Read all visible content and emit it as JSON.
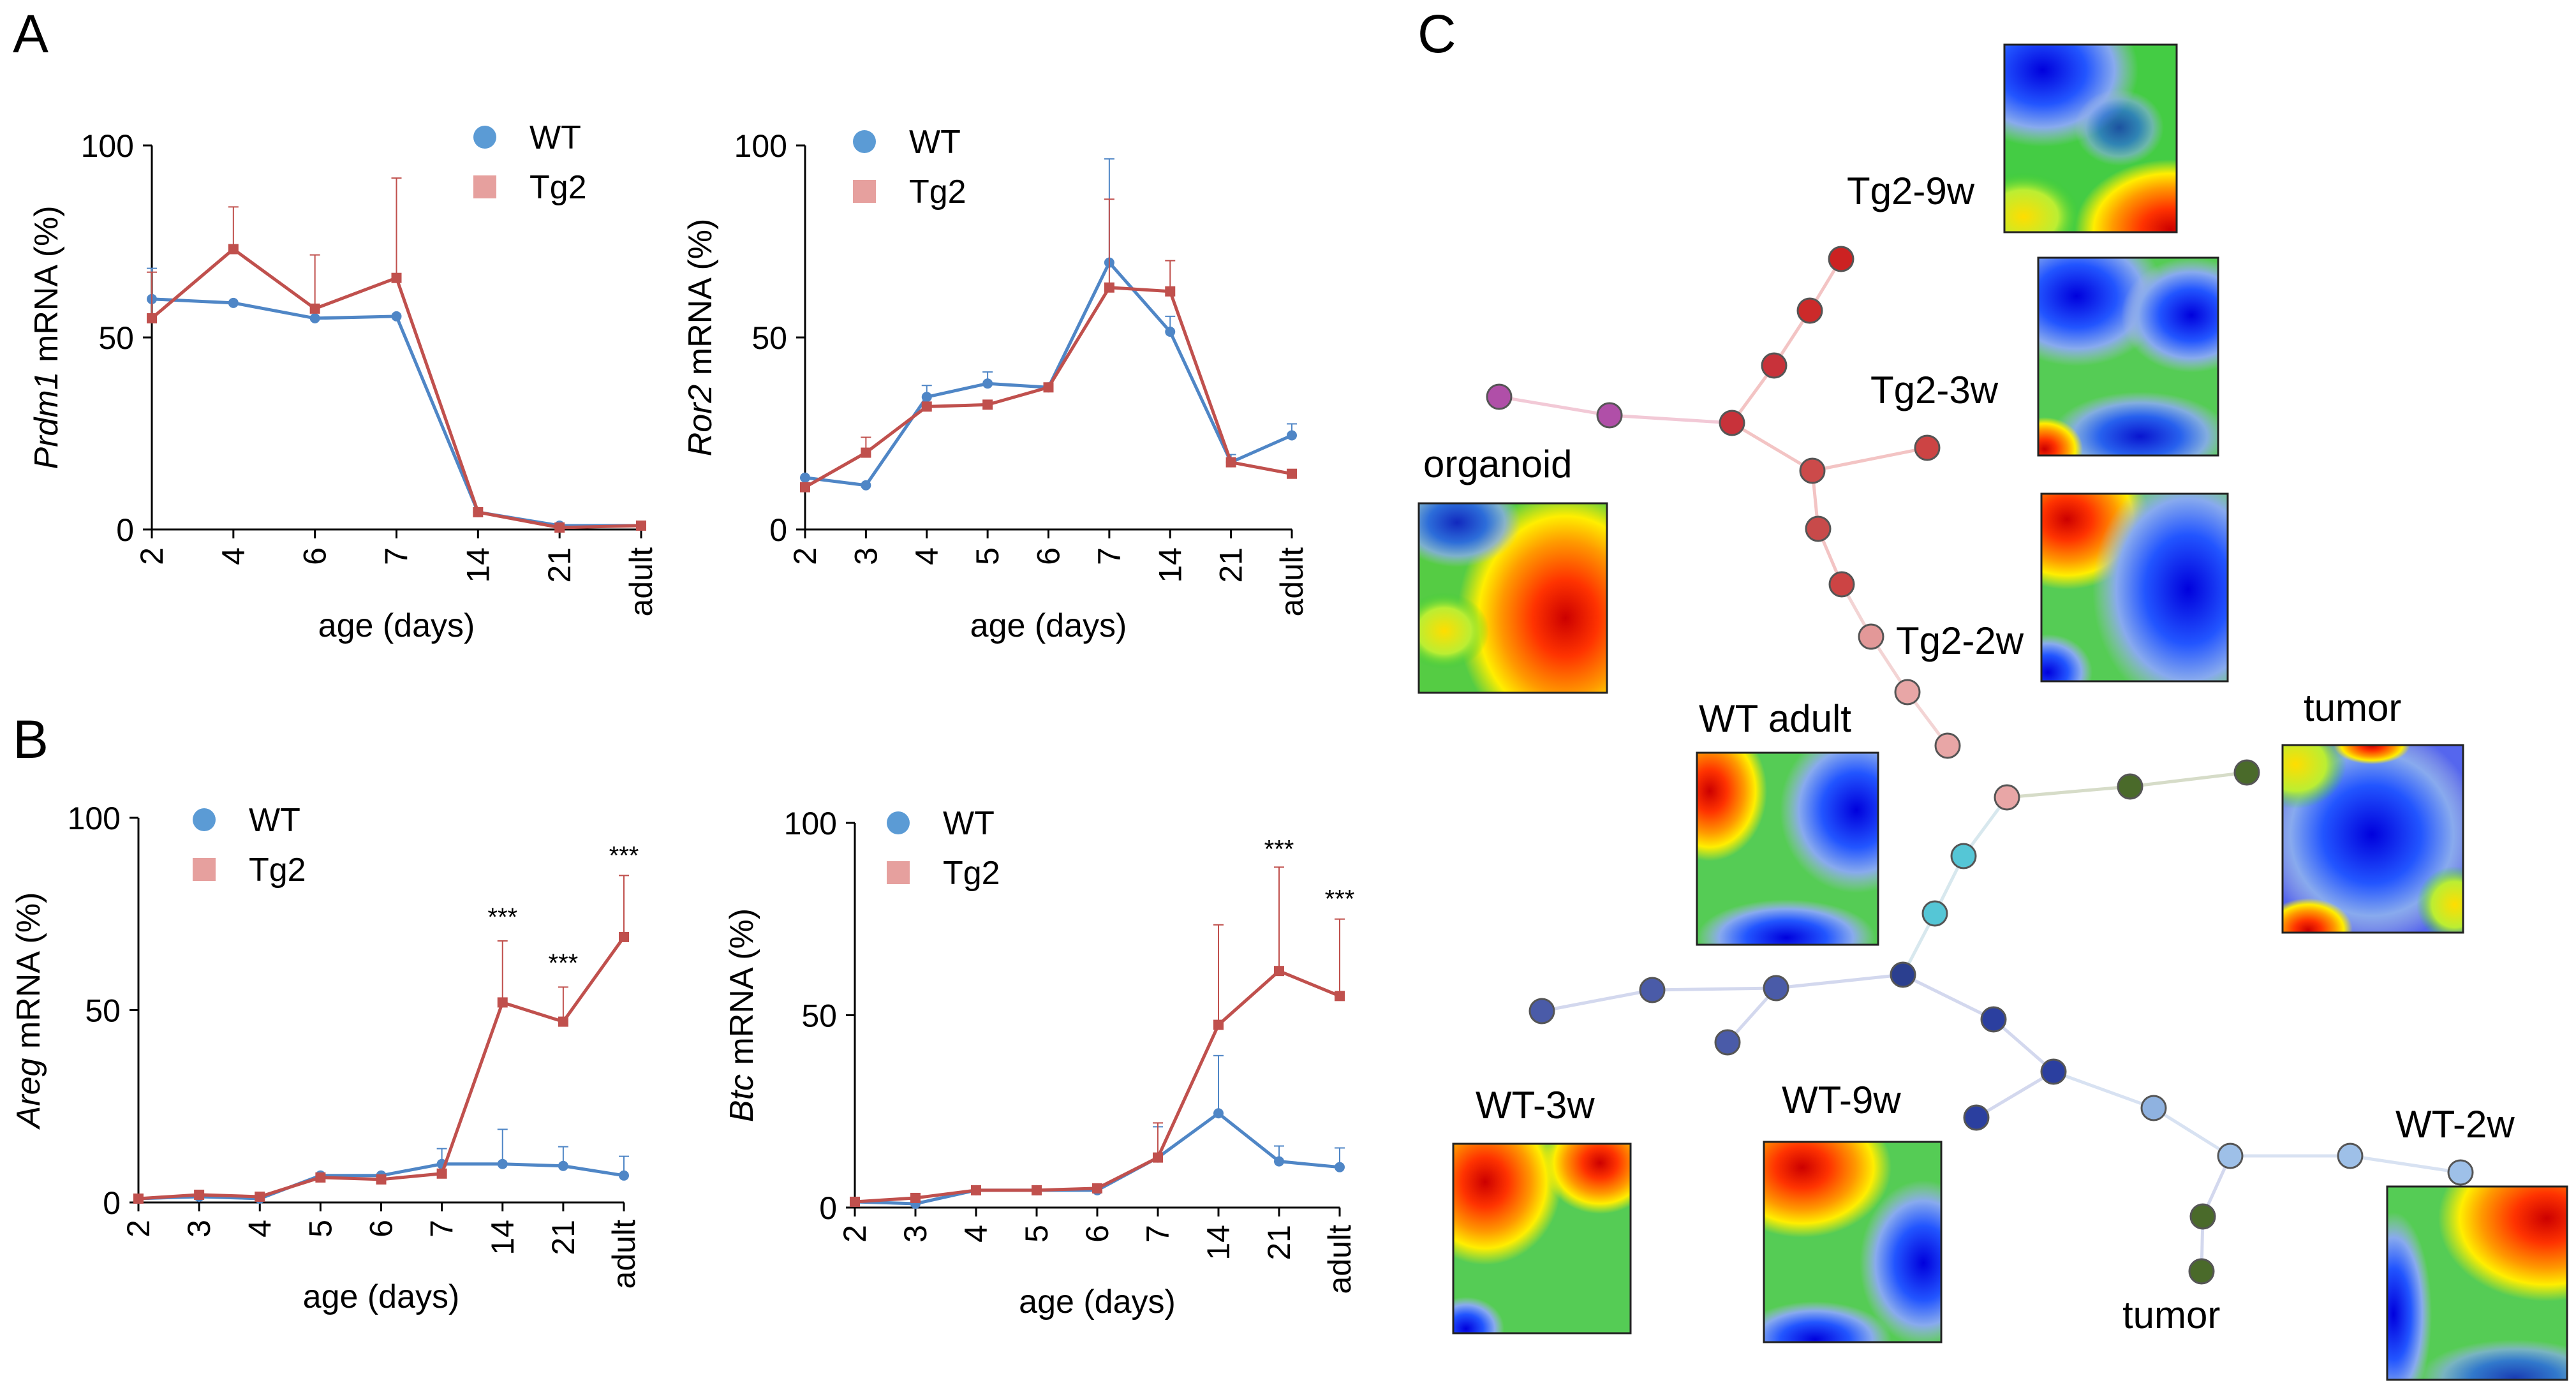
{
  "panels": {
    "A": "A",
    "B": "B",
    "C": "C"
  },
  "colors": {
    "wt": "#4f86c6",
    "tg2": "#c0504d",
    "wt_legend": "#5b9bd5",
    "tg2_legend": "#e6a09e",
    "axis": "#000000"
  },
  "chart_data": [
    {
      "id": "prdm1",
      "type": "line",
      "title": "",
      "gene": "Prdm1",
      "ylabel_suffix": " mRNA (%)",
      "xlabel": "age (days)",
      "categories": [
        "2",
        "4",
        "6",
        "7",
        "14",
        "21",
        "adult"
      ],
      "ylim": [
        0,
        100
      ],
      "yticks": [
        "0",
        "50",
        "100"
      ],
      "legend": [
        "WT",
        "Tg2"
      ],
      "series": [
        {
          "name": "WT",
          "values": [
            60,
            59,
            55,
            55.5,
            4.5,
            1,
            1
          ],
          "errors": [
            8,
            0,
            0,
            0,
            0,
            0,
            0
          ]
        },
        {
          "name": "Tg2",
          "values": [
            55,
            73,
            57.5,
            65.5,
            4.5,
            0.5,
            1
          ],
          "errors": [
            12,
            11,
            14,
            26,
            0,
            0,
            0
          ]
        }
      ],
      "annotations": []
    },
    {
      "id": "ror2",
      "type": "line",
      "title": "",
      "gene": "Ror2",
      "ylabel_suffix": " mRNA (%)",
      "xlabel": "age (days)",
      "categories": [
        "2",
        "3",
        "4",
        "5",
        "6",
        "7",
        "14",
        "21",
        "adult"
      ],
      "ylim": [
        0,
        100
      ],
      "yticks": [
        "0",
        "50",
        "100"
      ],
      "legend": [
        "WT",
        "Tg2"
      ],
      "series": [
        {
          "name": "WT",
          "values": [
            13.5,
            11.5,
            34.5,
            38,
            37,
            69.5,
            51.5,
            17.5,
            24.5
          ],
          "errors": [
            0,
            0,
            3,
            3,
            0,
            27,
            4,
            2,
            3
          ]
        },
        {
          "name": "Tg2",
          "values": [
            11,
            20,
            32,
            32.5,
            37,
            63,
            62,
            17.5,
            14.5
          ],
          "errors": [
            0,
            4,
            0,
            0,
            0,
            23,
            8,
            0,
            0
          ]
        }
      ],
      "annotations": []
    },
    {
      "id": "areg",
      "type": "line",
      "title": "",
      "gene": "Areg",
      "ylabel_suffix": " mRNA (%)",
      "xlabel": "age (days)",
      "categories": [
        "2",
        "3",
        "4",
        "5",
        "6",
        "7",
        "14",
        "21",
        "adult"
      ],
      "ylim": [
        0,
        100
      ],
      "yticks": [
        "0",
        "50",
        "100"
      ],
      "legend": [
        "WT",
        "Tg2"
      ],
      "series": [
        {
          "name": "WT",
          "values": [
            1,
            1.5,
            1,
            7,
            7,
            10,
            10,
            9.5,
            7
          ],
          "errors": [
            0,
            0,
            0,
            0,
            0,
            4,
            9,
            5,
            5
          ]
        },
        {
          "name": "Tg2",
          "values": [
            1,
            2,
            1.5,
            6.5,
            6,
            7.5,
            52,
            47,
            69
          ],
          "errors": [
            0,
            0,
            0,
            0,
            0,
            0,
            16,
            9,
            16
          ]
        }
      ],
      "annotations": [
        {
          "category": "14",
          "label": "***",
          "value": 72
        },
        {
          "category": "21",
          "label": "***",
          "value": 60
        },
        {
          "category": "adult",
          "label": "***",
          "value": 88
        }
      ]
    },
    {
      "id": "btc",
      "type": "line",
      "title": "",
      "gene": "Btc",
      "ylabel_suffix": " mRNA (%)",
      "xlabel": "age (days)",
      "categories": [
        "2",
        "3",
        "4",
        "5",
        "6",
        "7",
        "14",
        "21",
        "adult"
      ],
      "ylim": [
        0,
        100
      ],
      "yticks": [
        "0",
        "50",
        "100"
      ],
      "legend": [
        "WT",
        "Tg2"
      ],
      "series": [
        {
          "name": "WT",
          "values": [
            1.5,
            1,
            4.5,
            4.5,
            4.5,
            13,
            24.5,
            12,
            10.5
          ],
          "errors": [
            0,
            0,
            0,
            0,
            0,
            8,
            15,
            4,
            5
          ]
        },
        {
          "name": "Tg2",
          "values": [
            1.5,
            2.5,
            4.5,
            4.5,
            5,
            13,
            47.5,
            61.5,
            55
          ],
          "errors": [
            0,
            0,
            0,
            0,
            0,
            9,
            26,
            27,
            20
          ]
        }
      ],
      "annotations": [
        {
          "category": "21",
          "label": "***",
          "value": 91
        },
        {
          "category": "adult",
          "label": "***",
          "value": 78
        }
      ]
    }
  ],
  "som_tree": {
    "labels": {
      "organoid": "organoid",
      "tg2_9w": "Tg2-9w",
      "tg2_3w": "Tg2-3w",
      "tg2_2w": "Tg2-2w",
      "wt_adult": "WT adult",
      "tumor_right": "tumor",
      "wt_3w": "WT-3w",
      "wt_9w": "WT-9w",
      "wt_2w": "WT-2w",
      "tumor_bottom": "tumor"
    }
  }
}
